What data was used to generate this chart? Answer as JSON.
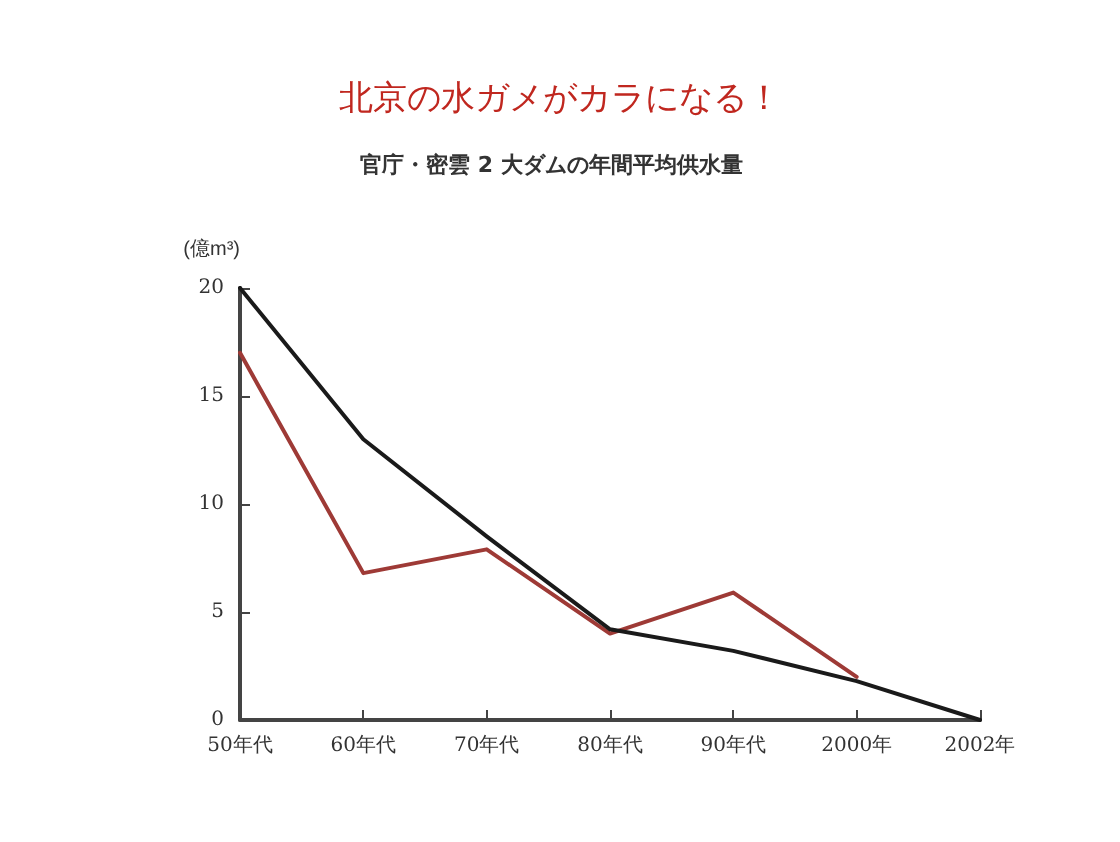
{
  "chart_data": {
    "type": "line",
    "title": "北京の水ガメがカラになる！",
    "subtitle": "官庁・密雲 2 大ダムの年間平均供水量",
    "ylabel": "(億m³)",
    "categories": [
      "50年代",
      "60年代",
      "70年代",
      "80年代",
      "90年代",
      "2000年",
      "2002年"
    ],
    "series": [
      {
        "color": "#9e3a36",
        "values": [
          17,
          6.8,
          7.9,
          4,
          5.9,
          2,
          null
        ]
      },
      {
        "color": "#1a1a1a",
        "values": [
          20,
          13,
          8.5,
          4.2,
          3.2,
          1.8,
          0
        ]
      }
    ],
    "ylim": [
      0,
      20
    ],
    "yticks": [
      0,
      5,
      10,
      15,
      20
    ],
    "grid": false,
    "marker": "none",
    "line_style": "solid"
  }
}
